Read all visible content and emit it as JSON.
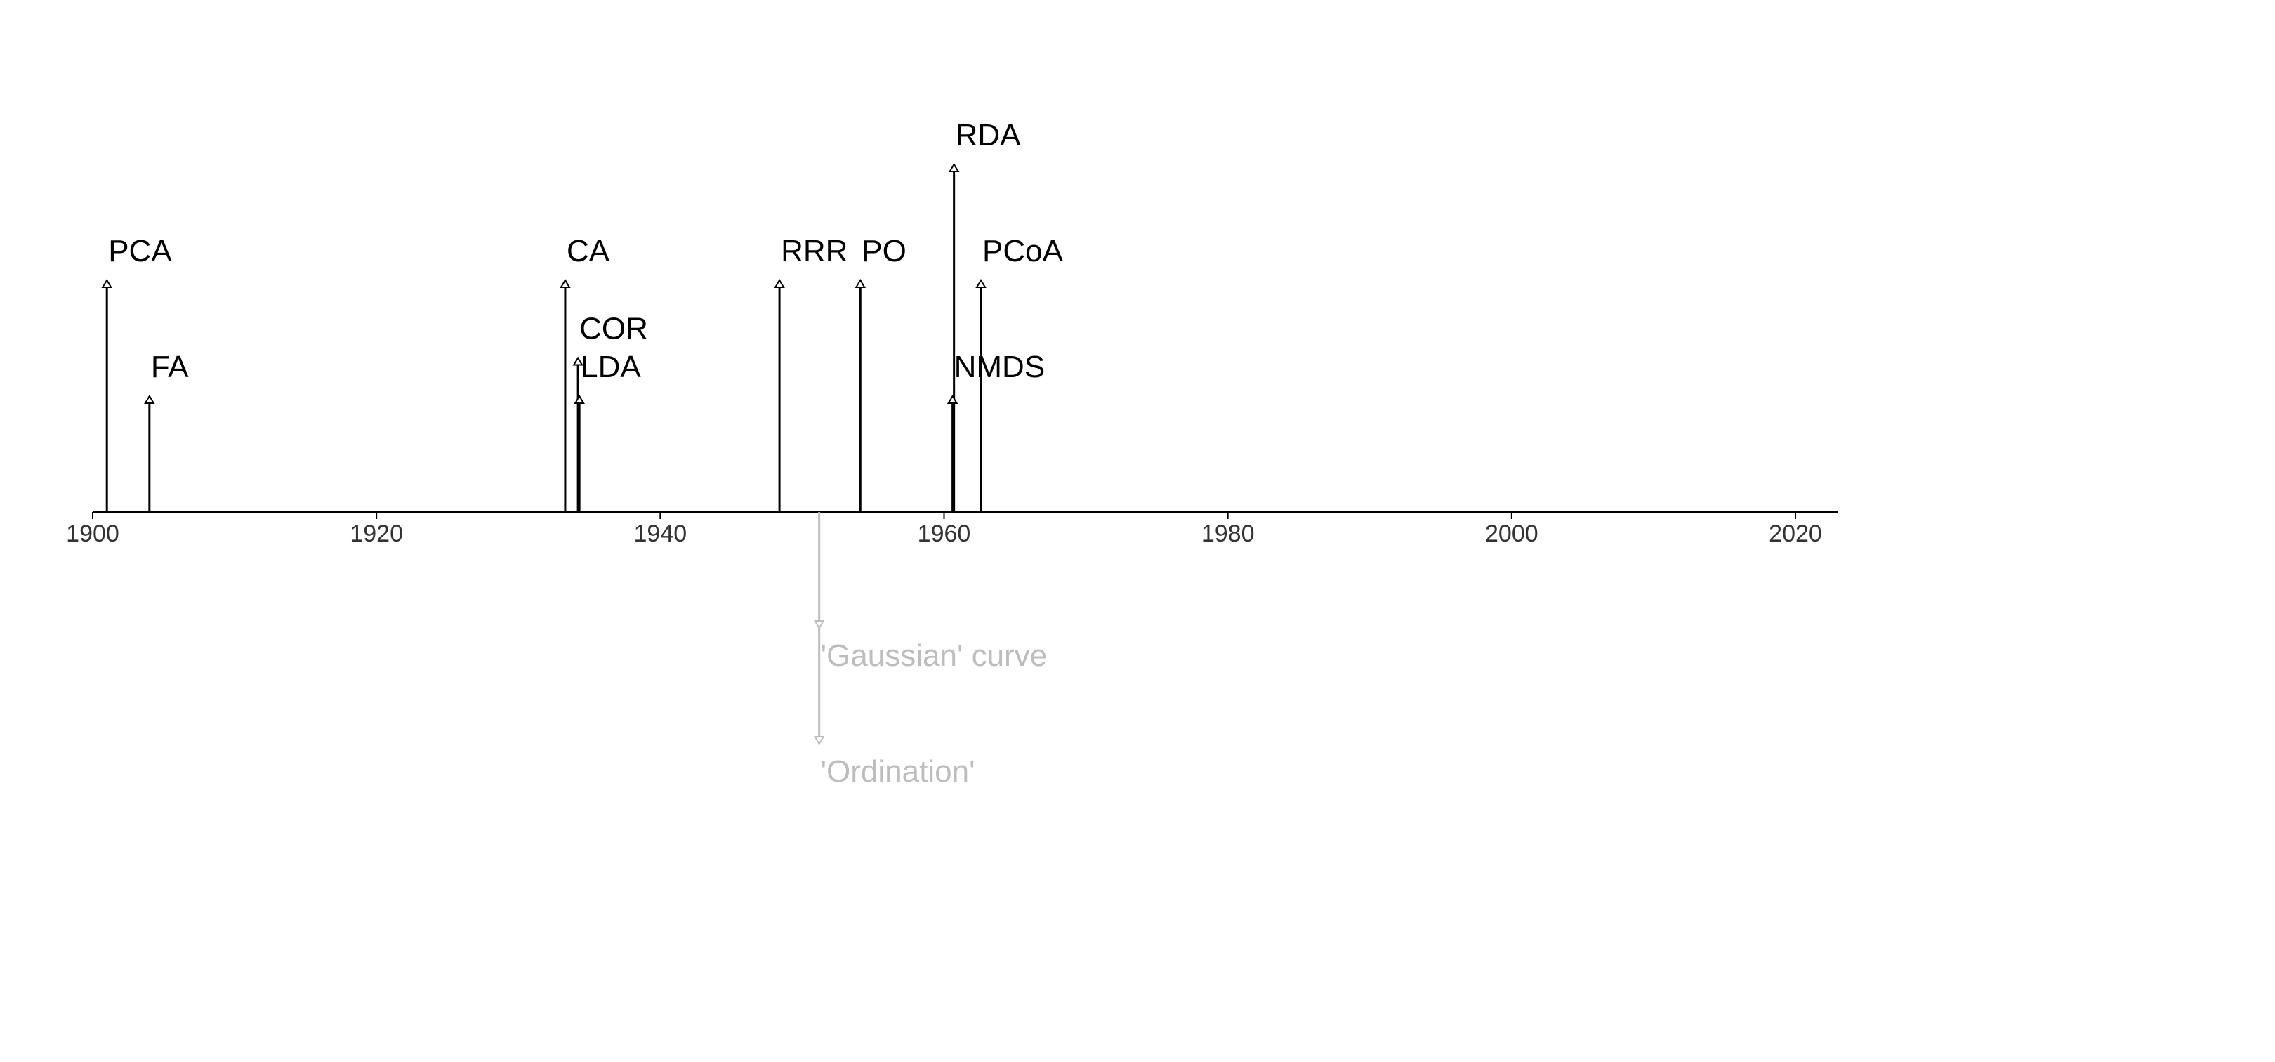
{
  "chart_data": {
    "type": "timeline",
    "title": "",
    "xlabel": "",
    "ylabel": "",
    "xlim": [
      1900,
      2023
    ],
    "x_ticks": [
      1900,
      1920,
      1940,
      1960,
      1980,
      2000,
      2020
    ],
    "x_tick_labels": [
      "1900",
      "1920",
      "1940",
      "1960",
      "1980",
      "2000",
      "2020"
    ],
    "colors": {
      "event": "#000000",
      "note": "#bdbdbd",
      "axis": "#000000",
      "tick_text": "#333333"
    },
    "events": [
      {
        "label": "PCA",
        "year": 1901,
        "level": 2
      },
      {
        "label": "FA",
        "year": 1904,
        "level": 1
      },
      {
        "label": "CA",
        "year": 1933.3,
        "level": 2
      },
      {
        "label": "COR",
        "year": 1934.2,
        "level": 1.33
      },
      {
        "label": "LDA",
        "year": 1934.3,
        "level": 1
      },
      {
        "label": "RRR",
        "year": 1948.4,
        "level": 2
      },
      {
        "label": "PO",
        "year": 1954.1,
        "level": 2
      },
      {
        "label": "RDA",
        "year": 1960.7,
        "level": 3
      },
      {
        "label": "NMDS",
        "year": 1960.6,
        "level": 1
      },
      {
        "label": "PCoA",
        "year": 1962.6,
        "level": 2
      }
    ],
    "annotations": [
      {
        "label": "'Gaussian' curve",
        "year": 1951.2,
        "level": -1
      },
      {
        "label": "'Ordination'",
        "year": 1951.2,
        "level": -2
      }
    ]
  }
}
